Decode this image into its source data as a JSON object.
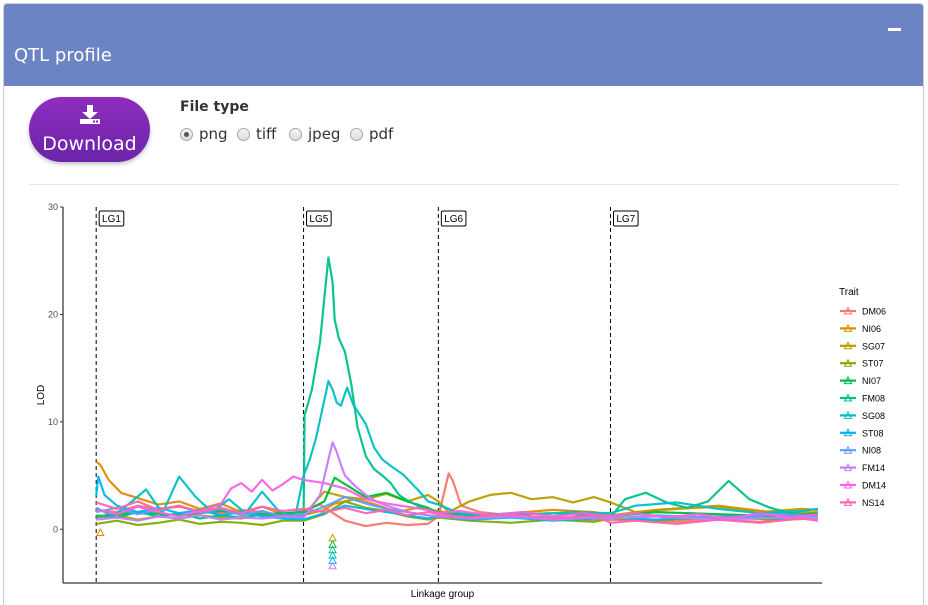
{
  "panel": {
    "title": "QTL profile"
  },
  "download": {
    "label": "Download",
    "icon": "download-icon"
  },
  "file_type": {
    "label": "File type",
    "options": [
      "png",
      "tiff",
      "jpeg",
      "pdf"
    ],
    "selected": "png"
  },
  "chart_data": {
    "type": "line",
    "xlabel": "Linkage group",
    "ylabel": "LOD",
    "ylim": [
      -5,
      30
    ],
    "yticks": [
      0,
      10,
      20,
      30
    ],
    "grid": false,
    "legend": {
      "title": "Trait",
      "placement": "right"
    },
    "groups": [
      {
        "label": "LG1",
        "start": 0,
        "end": 100
      },
      {
        "label": "LG5",
        "start": 100,
        "end": 165
      },
      {
        "label": "LG6",
        "start": 165,
        "end": 248
      },
      {
        "label": "LG7",
        "start": 248,
        "end": 348
      }
    ],
    "xlim": [
      -16,
      350
    ],
    "series": [
      {
        "name": "DM06",
        "color": "#F8766D",
        "x": [
          0,
          10,
          20,
          30,
          40,
          50,
          60,
          70,
          80,
          90,
          100,
          108,
          115,
          120,
          130,
          140,
          150,
          160,
          165,
          170,
          172,
          176,
          185,
          200,
          220,
          240,
          248,
          260,
          280,
          300,
          320,
          340,
          348
        ],
        "y": [
          1.8,
          1.6,
          2.2,
          1.9,
          2.1,
          1.7,
          1.5,
          1.8,
          1.6,
          1.3,
          1.8,
          2.3,
          1.4,
          0.8,
          0.3,
          0.6,
          0.4,
          0.5,
          1.2,
          5.2,
          4.5,
          2.2,
          1.6,
          1.3,
          1.0,
          0.8,
          0.9,
          0.8,
          0.7,
          0.9,
          0.7,
          1.1,
          0.9
        ]
      },
      {
        "name": "NI06",
        "color": "#DE8C00",
        "x": [
          0,
          2,
          6,
          12,
          20,
          30,
          40,
          50,
          60,
          70,
          80,
          90,
          100,
          110,
          115,
          125,
          135,
          145,
          155,
          165,
          180,
          200,
          220,
          240,
          248,
          270,
          300,
          330,
          348
        ],
        "y": [
          6.3,
          6.0,
          4.6,
          3.4,
          2.9,
          2.3,
          2.6,
          1.9,
          2.4,
          1.6,
          2.1,
          1.4,
          1.3,
          1.8,
          2.4,
          2.8,
          2.3,
          1.6,
          2.0,
          1.7,
          1.2,
          1.5,
          1.8,
          1.6,
          1.3,
          1.8,
          2.2,
          1.5,
          1.6
        ]
      },
      {
        "name": "SG07",
        "color": "#B79F00",
        "x": [
          0,
          10,
          20,
          30,
          40,
          50,
          60,
          70,
          80,
          90,
          100,
          110,
          120,
          130,
          140,
          150,
          160,
          165,
          170,
          180,
          190,
          200,
          210,
          220,
          230,
          240,
          248,
          260,
          280,
          300,
          320,
          340,
          348
        ],
        "y": [
          1.1,
          1.3,
          0.9,
          1.2,
          1.0,
          1.3,
          1.1,
          1.0,
          1.4,
          1.2,
          1.3,
          3.5,
          3.0,
          2.8,
          3.3,
          2.6,
          3.2,
          2.6,
          1.6,
          2.6,
          3.2,
          3.4,
          2.8,
          3.0,
          2.5,
          3.0,
          2.5,
          1.6,
          1.9,
          2.1,
          1.6,
          1.9,
          1.8
        ]
      },
      {
        "name": "ST07",
        "color": "#7CAE00",
        "x": [
          0,
          10,
          20,
          30,
          40,
          50,
          60,
          70,
          80,
          90,
          100,
          110,
          120,
          130,
          140,
          150,
          160,
          165,
          180,
          200,
          220,
          240,
          248,
          270,
          300,
          330,
          348
        ],
        "y": [
          0.5,
          0.8,
          0.4,
          0.6,
          0.9,
          0.5,
          0.7,
          0.6,
          0.4,
          0.8,
          0.8,
          1.4,
          2.6,
          2.0,
          1.7,
          1.2,
          0.9,
          1.1,
          0.8,
          0.6,
          0.9,
          0.7,
          1.0,
          0.8,
          1.1,
          0.9,
          1.0
        ]
      },
      {
        "name": "NI07",
        "color": "#00BA38",
        "x": [
          0,
          20,
          40,
          60,
          80,
          100,
          110,
          115,
          120,
          130,
          140,
          150,
          160,
          165,
          190,
          220,
          248,
          270,
          300,
          330,
          348
        ],
        "y": [
          1.2,
          1.6,
          1.3,
          1.7,
          1.4,
          1.6,
          2.6,
          4.8,
          4.2,
          3.0,
          3.4,
          2.6,
          2.0,
          1.5,
          1.3,
          1.5,
          1.2,
          1.6,
          1.4,
          1.2,
          1.5
        ]
      },
      {
        "name": "FM08",
        "color": "#00C08B",
        "x": [
          0,
          10,
          20,
          30,
          40,
          50,
          60,
          70,
          80,
          90,
          100,
          100.5,
          104,
          108,
          110,
          112,
          114,
          115,
          117,
          120,
          123,
          126,
          130,
          134,
          138,
          142,
          146,
          150,
          156,
          160,
          165,
          175,
          200,
          225,
          248,
          255,
          265,
          275,
          285,
          295,
          305,
          315,
          325,
          335,
          348
        ],
        "y": [
          1.3,
          1.1,
          1.6,
          1.2,
          1.5,
          1.0,
          1.3,
          1.1,
          1.4,
          1.2,
          1.1,
          10.6,
          13.0,
          17.5,
          21.5,
          25.3,
          23.0,
          19.5,
          17.8,
          16.5,
          13.5,
          9.5,
          6.8,
          5.6,
          5.0,
          4.3,
          3.2,
          2.7,
          2.1,
          1.8,
          1.6,
          1.3,
          1.2,
          1.1,
          1.1,
          2.8,
          3.4,
          2.5,
          2.0,
          2.6,
          4.5,
          2.8,
          2.0,
          1.5,
          1.3
        ]
      },
      {
        "name": "SG08",
        "color": "#00BFC4",
        "x": [
          0,
          8,
          16,
          24,
          32,
          40,
          48,
          56,
          64,
          72,
          80,
          88,
          96,
          100,
          103,
          106,
          110,
          112,
          114,
          116,
          118,
          121,
          124,
          130,
          134,
          138,
          142,
          148,
          155,
          160,
          165,
          175,
          185,
          200,
          215,
          230,
          248,
          260,
          280,
          300,
          320,
          340,
          348
        ],
        "y": [
          2.0,
          1.2,
          2.4,
          3.7,
          1.5,
          4.9,
          3.0,
          1.6,
          2.8,
          1.5,
          3.5,
          1.7,
          1.2,
          5.0,
          6.5,
          8.5,
          12.0,
          13.8,
          13.0,
          11.8,
          11.5,
          13.2,
          11.6,
          9.8,
          7.6,
          6.5,
          5.9,
          5.1,
          3.7,
          2.6,
          2.3,
          1.5,
          1.3,
          1.5,
          1.4,
          1.6,
          1.5,
          2.2,
          2.5,
          1.9,
          1.5,
          1.7,
          1.9
        ]
      },
      {
        "name": "ST08",
        "color": "#00B4F0",
        "x": [
          0,
          1,
          4,
          10,
          20,
          30,
          40,
          50,
          60,
          70,
          80,
          90,
          100,
          110,
          120,
          130,
          140,
          150,
          160,
          165,
          180,
          200,
          220,
          240,
          248,
          270,
          300,
          330,
          348
        ],
        "y": [
          3.1,
          4.9,
          3.2,
          2.2,
          1.6,
          2.0,
          1.5,
          1.8,
          1.3,
          1.6,
          1.2,
          1.0,
          0.9,
          1.5,
          2.2,
          1.9,
          1.6,
          1.3,
          1.0,
          1.2,
          0.9,
          1.1,
          0.8,
          1.0,
          1.1,
          0.9,
          1.2,
          1.0,
          1.3
        ]
      },
      {
        "name": "NI08",
        "color": "#619CFF",
        "x": [
          0,
          10,
          20,
          30,
          40,
          50,
          60,
          70,
          80,
          90,
          100,
          110,
          120,
          130,
          140,
          150,
          160,
          165,
          180,
          200,
          220,
          240,
          248,
          270,
          300,
          330,
          348
        ],
        "y": [
          1.6,
          2.0,
          1.4,
          1.8,
          2.2,
          1.5,
          1.9,
          1.3,
          1.7,
          1.2,
          1.4,
          2.1,
          3.0,
          2.4,
          1.9,
          1.6,
          1.3,
          1.2,
          1.0,
          1.2,
          0.9,
          1.1,
          1.0,
          1.3,
          1.1,
          1.4,
          1.2
        ]
      },
      {
        "name": "FM14",
        "color": "#C77CFF",
        "x": [
          0,
          10,
          20,
          30,
          40,
          50,
          60,
          70,
          80,
          90,
          100,
          108,
          112,
          114,
          116,
          118,
          120,
          125,
          130,
          135,
          140,
          150,
          160,
          165,
          180,
          200,
          220,
          240,
          248,
          270,
          300,
          330,
          348
        ],
        "y": [
          0.9,
          1.1,
          0.8,
          1.2,
          1.0,
          1.3,
          0.9,
          1.1,
          1.0,
          1.2,
          1.1,
          3.2,
          6.5,
          8.1,
          7.2,
          6.0,
          5.0,
          4.0,
          3.2,
          2.6,
          2.2,
          1.6,
          1.3,
          1.2,
          1.0,
          1.2,
          0.9,
          1.1,
          1.0,
          1.2,
          0.9,
          1.1,
          1.0
        ]
      },
      {
        "name": "DM14",
        "color": "#F564E3",
        "x": [
          0,
          10,
          20,
          30,
          40,
          50,
          60,
          65,
          70,
          75,
          80,
          85,
          90,
          95,
          100,
          110,
          120,
          130,
          140,
          150,
          160,
          165,
          175,
          190,
          205,
          220,
          235,
          248,
          260,
          275,
          290,
          305,
          320,
          335,
          348
        ],
        "y": [
          1.8,
          1.4,
          2.1,
          1.6,
          1.2,
          1.7,
          2.3,
          3.8,
          4.3,
          3.5,
          4.6,
          3.6,
          4.2,
          4.9,
          4.6,
          4.3,
          3.8,
          2.8,
          2.4,
          2.1,
          1.8,
          1.5,
          1.7,
          1.3,
          1.6,
          1.2,
          1.5,
          1.2,
          1.5,
          1.1,
          1.4,
          1.0,
          1.5,
          1.1,
          1.4
        ]
      },
      {
        "name": "NS14",
        "color": "#FF64B0",
        "x": [
          0,
          10,
          20,
          30,
          40,
          50,
          60,
          70,
          80,
          90,
          100,
          110,
          120,
          130,
          140,
          150,
          160,
          165,
          180,
          200,
          220,
          240,
          248,
          260,
          280,
          300,
          320,
          340,
          348
        ],
        "y": [
          2.5,
          1.9,
          2.6,
          1.8,
          2.2,
          1.6,
          2.0,
          1.5,
          2.1,
          1.7,
          1.9,
          1.6,
          2.0,
          1.5,
          1.8,
          1.3,
          1.6,
          1.4,
          1.1,
          1.4,
          1.0,
          1.3,
          0.6,
          0.8,
          0.5,
          0.9,
          0.6,
          1.0,
          0.8
        ]
      }
    ],
    "markers": {
      "shape": "triangle-outline",
      "points": [
        {
          "series": "NI06",
          "x": 2,
          "y": -0.3
        },
        {
          "series": "SG07",
          "x": 114,
          "y": -0.8
        },
        {
          "series": "NI07",
          "x": 114,
          "y": -1.4
        },
        {
          "series": "FM08",
          "x": 114,
          "y": -1.9
        },
        {
          "series": "SG08",
          "x": 114,
          "y": -2.4
        },
        {
          "series": "ST08",
          "x": 114,
          "y": -2.9
        },
        {
          "series": "FM14",
          "x": 114,
          "y": -3.4
        }
      ]
    }
  }
}
